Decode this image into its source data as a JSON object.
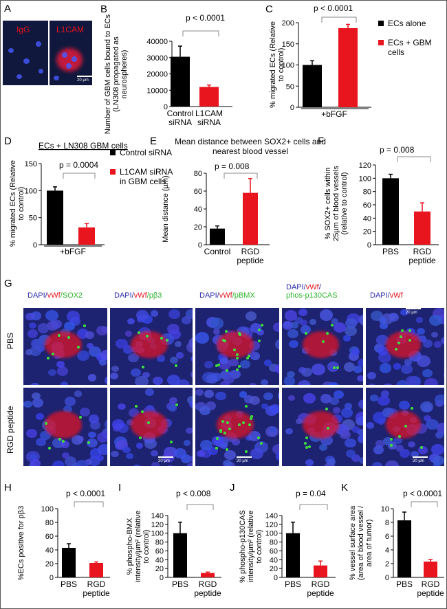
{
  "panels": {
    "A": {
      "letter": "A",
      "left_label": "IgG",
      "right_label": "L1CAM",
      "scale": "20 µm"
    },
    "G": {
      "letter": "G",
      "rows": [
        "PBS",
        "RGD peptide"
      ],
      "cols": [
        {
          "parts": [
            {
              "t": "DAPI/",
              "c": "blu"
            },
            {
              "t": "vWf",
              "c": "red"
            },
            {
              "t": "/SOX2",
              "c": "grn"
            }
          ]
        },
        {
          "parts": [
            {
              "t": "DAPI/",
              "c": "blu"
            },
            {
              "t": "vWf",
              "c": "red"
            },
            {
              "t": "/pβ3",
              "c": "grn"
            }
          ]
        },
        {
          "parts": [
            {
              "t": "DAPI/",
              "c": "blu"
            },
            {
              "t": "vWf",
              "c": "red"
            },
            {
              "t": "/pBMX",
              "c": "grn"
            }
          ]
        },
        {
          "parts": [
            {
              "t": "DAPI/",
              "c": "blu"
            },
            {
              "t": "vWf",
              "c": "red"
            },
            {
              "t": "/",
              "c": "blu"
            }
          ],
          "line2": "phos-p130CAS"
        },
        {
          "parts": [
            {
              "t": "DAPI/",
              "c": "blu"
            },
            {
              "t": "vWf",
              "c": "red"
            }
          ]
        }
      ],
      "scale": "20 µm"
    }
  },
  "chart_data": [
    {
      "id": "B",
      "letter": "B",
      "type": "bar",
      "categories": [
        "Control siRNA",
        "L1CAM siRNA"
      ],
      "values": [
        30500,
        12000
      ],
      "errors": [
        6500,
        1200
      ],
      "colors": [
        "#000000",
        "#e8141e"
      ],
      "ylim": [
        0,
        40000
      ],
      "yticks": [
        0,
        10000,
        20000,
        30000,
        40000
      ],
      "ylabel": "Number of GBM cells bound to ECs (LN308 propagated as neurospheres)",
      "pvalue": "p < 0.0001",
      "xlabel": "",
      "title": ""
    },
    {
      "id": "C",
      "letter": "C",
      "type": "bar",
      "categories": [
        "",
        ""
      ],
      "values": [
        100,
        187
      ],
      "errors": [
        10,
        9
      ],
      "colors": [
        "#000000",
        "#e8141e"
      ],
      "ylim": [
        0,
        200
      ],
      "yticks": [
        0,
        50,
        100,
        150,
        200
      ],
      "ylabel": "% migrated ECs (Relative to control)",
      "pvalue": "p < 0.0001",
      "group_label": "+bFGF",
      "legend": [
        "ECs alone",
        "ECs + GBM cells"
      ]
    },
    {
      "id": "D",
      "letter": "D",
      "type": "bar",
      "categories": [
        "",
        ""
      ],
      "values": [
        100,
        32
      ],
      "errors": [
        7,
        7
      ],
      "colors": [
        "#000000",
        "#e8141e"
      ],
      "ylim": [
        0,
        150
      ],
      "yticks": [
        0,
        50,
        100,
        150
      ],
      "ylabel": "% migrated ECs (Relative to control)",
      "pvalue": "p = 0.0004",
      "title": "ECs + LN308 GBM cells",
      "group_label": "+bFGF",
      "legend": [
        "Control siRNA",
        "L1CAM siRNA in GBM cells"
      ]
    },
    {
      "id": "E",
      "letter": "E",
      "type": "bar",
      "categories": [
        "Control",
        "RGD peptide"
      ],
      "values": [
        18,
        58
      ],
      "errors": [
        3,
        16
      ],
      "colors": [
        "#000000",
        "#e8141e"
      ],
      "ylim": [
        0,
        80
      ],
      "yticks": [
        0,
        20,
        40,
        60,
        80
      ],
      "ylabel": "Mean distance (µm)",
      "pvalue": "p = 0.008",
      "title": "Mean distance between SOX2+ cells and nearest blood vessel"
    },
    {
      "id": "F",
      "letter": "F",
      "type": "bar",
      "categories": [
        "PBS",
        "RGD peptide"
      ],
      "values": [
        100,
        50
      ],
      "errors": [
        6,
        13
      ],
      "colors": [
        "#000000",
        "#e8141e"
      ],
      "ylim": [
        0,
        120
      ],
      "yticks": [
        0,
        20,
        40,
        60,
        80,
        100,
        120
      ],
      "ylabel": "% SOX2+ cells within 25µm of blood vessels (relative to control)",
      "pvalue": "p = 0.008"
    },
    {
      "id": "H",
      "letter": "H",
      "type": "bar",
      "categories": [
        "PBS",
        "RGD peptide"
      ],
      "values": [
        43,
        21
      ],
      "errors": [
        6,
        1.5
      ],
      "colors": [
        "#000000",
        "#e8141e"
      ],
      "ylim": [
        0,
        100
      ],
      "yticks": [
        0,
        20,
        40,
        60,
        80,
        100
      ],
      "ylabel": "%ECs positive for pβ3",
      "pvalue": "p < 0.0001"
    },
    {
      "id": "I",
      "letter": "I",
      "type": "bar",
      "categories": [
        "PBS",
        "RGD peptide"
      ],
      "values": [
        100,
        10
      ],
      "errors": [
        25,
        2
      ],
      "colors": [
        "#000000",
        "#e8141e"
      ],
      "ylim": [
        0,
        140
      ],
      "yticks": [
        0,
        20,
        40,
        60,
        80,
        100,
        120,
        140
      ],
      "ylabel": "% phospho-BMX intensity/µm² (relative to control)",
      "pvalue": "p < 0.008"
    },
    {
      "id": "J",
      "letter": "J",
      "type": "bar",
      "categories": [
        "PBS",
        "RGD peptide"
      ],
      "values": [
        100,
        27
      ],
      "errors": [
        25,
        10
      ],
      "colors": [
        "#000000",
        "#e8141e"
      ],
      "ylim": [
        0,
        140
      ],
      "yticks": [
        0,
        20,
        40,
        60,
        80,
        100,
        120,
        140
      ],
      "ylabel": "% phospho-p130CAS intensity/µm² (relative to control)",
      "pvalue": "p = 0.04"
    },
    {
      "id": "K",
      "letter": "K",
      "type": "bar",
      "categories": [
        "PBS",
        "RGD peptide"
      ],
      "values": [
        8.3,
        2.3
      ],
      "errors": [
        1.2,
        0.3
      ],
      "colors": [
        "#000000",
        "#e8141e"
      ],
      "ylim": [
        0,
        10
      ],
      "yticks": [
        0,
        2,
        4,
        6,
        8,
        10
      ],
      "ylabel": "% vessel surface area (area of blood vessel / area of tumor)",
      "pvalue": "p < 0.0001"
    }
  ]
}
